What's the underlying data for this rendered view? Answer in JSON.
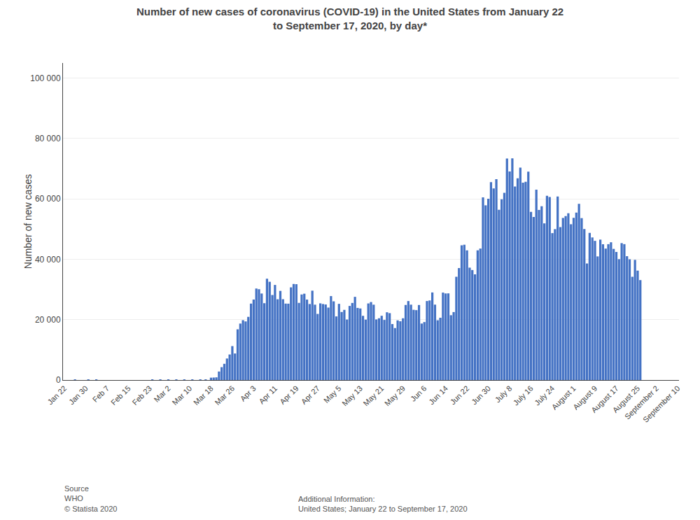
{
  "chart_data": {
    "type": "bar",
    "title": "Number of new cases of coronavirus (COVID-19) in the United States from January 22\nto September 17, 2020, by day*",
    "ylabel": "Number of new cases",
    "color": "#4472C4",
    "grid": true,
    "ylim": [
      0,
      105000
    ],
    "yticks": [
      0,
      {
        "value": 20000,
        "label": "20 000"
      },
      {
        "value": 40000,
        "label": "40 000"
      },
      {
        "value": 60000,
        "label": "60 000"
      },
      {
        "value": 80000,
        "label": "80 000"
      },
      {
        "value": 100000,
        "label": "100 000"
      }
    ],
    "annotations": [
      "Source\nWHO\n© Statista 2020",
      "Additional Information:\nUnited States; January 22 to September 17, 2020"
    ],
    "categories": [
      "Jan 22",
      null,
      null,
      null,
      null,
      null,
      null,
      null,
      "Jan 30",
      null,
      null,
      null,
      null,
      null,
      null,
      null,
      "Feb 7",
      null,
      null,
      null,
      null,
      null,
      null,
      null,
      "Feb 15",
      null,
      null,
      null,
      null,
      null,
      null,
      null,
      "Feb 23",
      null,
      null,
      null,
      null,
      null,
      null,
      "Mar 2",
      null,
      null,
      null,
      null,
      null,
      null,
      null,
      "Mar 10",
      null,
      null,
      null,
      null,
      null,
      null,
      null,
      "Mar 18",
      null,
      null,
      null,
      null,
      null,
      null,
      null,
      "Mar 26",
      null,
      null,
      null,
      null,
      null,
      null,
      null,
      "Apr 3",
      null,
      null,
      null,
      null,
      null,
      null,
      null,
      "Apr 11",
      null,
      null,
      null,
      null,
      null,
      null,
      null,
      "Apr 19",
      null,
      null,
      null,
      null,
      null,
      null,
      null,
      "Apr 27",
      null,
      null,
      null,
      null,
      null,
      null,
      null,
      "May 5",
      null,
      null,
      null,
      null,
      null,
      null,
      null,
      "May 13",
      null,
      null,
      null,
      null,
      null,
      null,
      null,
      "May 21",
      null,
      null,
      null,
      null,
      null,
      null,
      null,
      "May 29",
      null,
      null,
      null,
      null,
      null,
      null,
      null,
      "Jun 6",
      null,
      null,
      null,
      null,
      null,
      null,
      null,
      "Jun 14",
      null,
      null,
      null,
      null,
      null,
      null,
      null,
      "Jun 22",
      null,
      null,
      null,
      null,
      null,
      null,
      null,
      "Jun 30",
      null,
      null,
      null,
      null,
      null,
      null,
      null,
      "July 8",
      null,
      null,
      null,
      null,
      null,
      null,
      null,
      "July 16",
      null,
      null,
      null,
      null,
      null,
      null,
      null,
      "July 24",
      null,
      null,
      null,
      null,
      null,
      null,
      null,
      "August 1",
      null,
      null,
      null,
      null,
      null,
      null,
      null,
      "August 9",
      null,
      null,
      null,
      null,
      null,
      null,
      null,
      "August 17",
      null,
      null,
      null,
      null,
      null,
      null,
      null,
      "August 25",
      null,
      null,
      null,
      null,
      null,
      null,
      "September 2",
      null,
      null,
      null,
      null,
      null,
      null,
      null,
      "September 10"
    ],
    "values": [
      1,
      0,
      1,
      0,
      3,
      0,
      0,
      0,
      0,
      2,
      1,
      0,
      3,
      0,
      0,
      1,
      0,
      0,
      0,
      0,
      1,
      0,
      1,
      0,
      0,
      0,
      0,
      0,
      0,
      0,
      0,
      0,
      0,
      19,
      0,
      0,
      2,
      0,
      0,
      2,
      1,
      0,
      4,
      0,
      0,
      14,
      0,
      0,
      13,
      0,
      0,
      217,
      0,
      200,
      0,
      778,
      823,
      887,
      2820,
      4265,
      5374,
      7123,
      8459,
      11236,
      8789,
      16797,
      18695,
      19821,
      19408,
      20921,
      25316,
      26655,
      30302,
      30081,
      28649,
      25450,
      33536,
      32538,
      28158,
      31494,
      26747,
      29523,
      26763,
      25313,
      25291,
      30695,
      31826,
      31745,
      25551,
      28337,
      28591,
      26641,
      25175,
      29596,
      24962,
      21894,
      25398,
      25170,
      25025,
      23993,
      27800,
      26068,
      21064,
      25231,
      22535,
      23236,
      20029,
      24538,
      25527,
      27553,
      23883,
      23697,
      21261,
      20002,
      25366,
      25823,
      24956,
      20059,
      20456,
      21282,
      19901,
      22439,
      22148,
      18534,
      17213,
      19756,
      19457,
      20456,
      24861,
      26158,
      24961,
      23254,
      23147,
      24850,
      18701,
      19200,
      26170,
      26353,
      29003,
      24975,
      19789,
      20628,
      28955,
      28669,
      28700,
      21468,
      22512,
      34203,
      37078,
      44627,
      44810,
      42944,
      37214,
      36433,
      35000,
      42952,
      43542,
      60490,
      57862,
      60021,
      65551,
      63438,
      66527,
      56383,
      59880,
      62000,
      73388,
      69070,
      73433,
      64093,
      66836,
      70354,
      65381,
      65631,
      69018,
      55714,
      54001,
      63038,
      56336,
      57562,
      51881,
      61000,
      60590,
      48654,
      49969,
      60765,
      50638,
      53682,
      54296,
      55240,
      51598,
      53729,
      55456,
      58358,
      53620,
      50003,
      38609,
      48734,
      47218,
      46093,
      40940,
      46498,
      44987,
      43534,
      44992,
      45621,
      43434,
      42428,
      40025,
      45340,
      45000,
      41015,
      40004,
      34200,
      39802,
      36234,
      33100,
      null,
      null,
      null,
      null,
      null,
      null,
      null,
      null,
      null,
      null,
      null,
      null,
      null,
      null
    ]
  }
}
